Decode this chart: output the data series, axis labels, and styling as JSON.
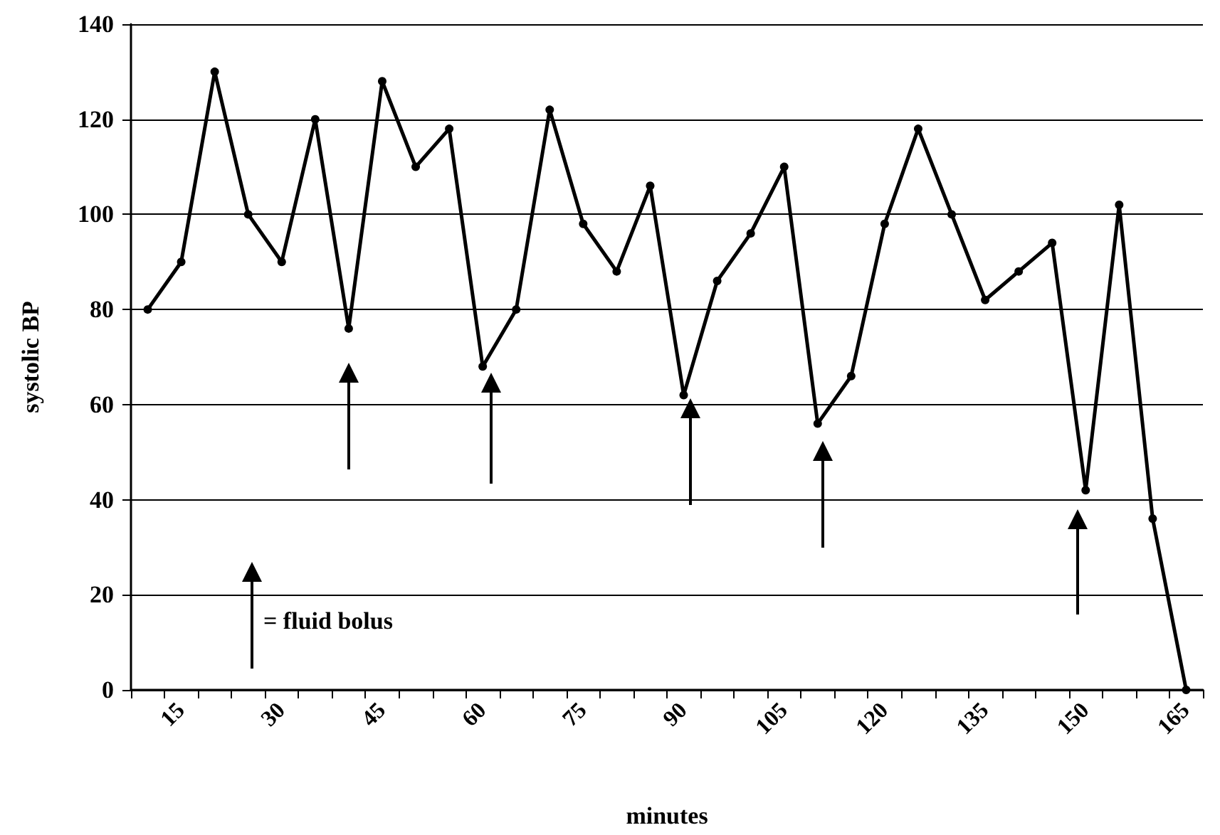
{
  "chart_data": {
    "type": "line",
    "xlabel": "minutes",
    "ylabel": "systolic BP",
    "categories": [
      null,
      "15",
      null,
      null,
      "30",
      null,
      null,
      "45",
      null,
      null,
      "60",
      null,
      null,
      "75",
      null,
      null,
      "90",
      null,
      null,
      "105",
      null,
      null,
      "120",
      null,
      null,
      "135",
      null,
      null,
      "150",
      null,
      null,
      "165"
    ],
    "series": [
      {
        "color": "#000000",
        "values": [
          80,
          90,
          130,
          100,
          90,
          120,
          76,
          128,
          110,
          118,
          68,
          80,
          122,
          98,
          88,
          106,
          62,
          86,
          96,
          110,
          56,
          66,
          98,
          118,
          100,
          82,
          88,
          94,
          42,
          102,
          36,
          0
        ]
      }
    ],
    "ylim": [
      0,
      140
    ],
    "yticks": [
      0,
      20,
      40,
      60,
      80,
      100,
      120,
      140
    ],
    "grid": "y",
    "marker": "circle",
    "line_style": "solid",
    "annotations": [
      "= fluid bolus"
    ]
  }
}
